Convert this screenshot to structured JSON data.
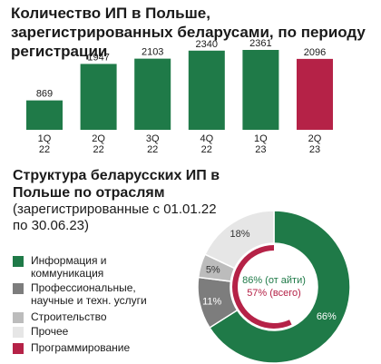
{
  "chart_data": [
    {
      "type": "bar",
      "title": "Количество ИП в Польше, зарегистрированных беларусами, по периоду регистрации",
      "categories": [
        "1Q 22",
        "2Q 22",
        "3Q 22",
        "4Q 22",
        "1Q 23",
        "2Q 23"
      ],
      "category_lines": [
        [
          "1Q",
          "22"
        ],
        [
          "2Q",
          "22"
        ],
        [
          "3Q",
          "22"
        ],
        [
          "4Q",
          "22"
        ],
        [
          "1Q",
          "23"
        ],
        [
          "2Q",
          "23"
        ]
      ],
      "values": [
        869,
        1947,
        2103,
        2340,
        2361,
        2096
      ],
      "data_labels": [
        "869",
        "1947",
        "2103",
        "2340",
        "2361",
        "2096"
      ],
      "ylim": [
        0,
        2361
      ],
      "colors": [
        "#1f7a48",
        "#1f7a48",
        "#1f7a48",
        "#1f7a48",
        "#1f7a48",
        "#b52247"
      ],
      "grid": false
    },
    {
      "type": "pie",
      "title": "Структура беларусских ИП в Польше по отраслям",
      "subtitle": "(зарегистрированные с 01.01.22 по 30.06.23)",
      "slices": [
        {
          "label": "Информация и коммуникация",
          "value": 66,
          "text": "66%",
          "color": "#1f7a48"
        },
        {
          "label": "Профессиональные, научные и техн. услуги",
          "value": 11,
          "text": "11%",
          "color": "#7d7d7d"
        },
        {
          "label": "Строительство",
          "value": 5,
          "text": "5%",
          "color": "#bcbcbc"
        },
        {
          "label": "Прочее",
          "value": 18,
          "text": "18%",
          "color": "#e6e6e6"
        }
      ],
      "inner_ring": {
        "label": "Программирование",
        "value": 57,
        "color": "#b52247"
      },
      "center_text": [
        "86% (от айти)",
        "57% (всего)"
      ],
      "center_colors": [
        "#1f7a48",
        "#b52247"
      ],
      "legend": [
        {
          "label": "Информация и коммуникация",
          "lines": [
            "Информация и",
            "коммуникация"
          ],
          "color": "#1f7a48"
        },
        {
          "label": "Профессиональные, научные и техн. услуги",
          "lines": [
            "Профессиональные,",
            "научные и техн. услуги"
          ],
          "color": "#7d7d7d"
        },
        {
          "label": "Строительство",
          "lines": [
            "Строительство"
          ],
          "color": "#bcbcbc"
        },
        {
          "label": "Прочее",
          "lines": [
            "Прочее"
          ],
          "color": "#e6e6e6"
        },
        {
          "label": "Программирование",
          "lines": [
            "Программирование"
          ],
          "color": "#b52247"
        }
      ],
      "legend_placement": "left"
    }
  ]
}
